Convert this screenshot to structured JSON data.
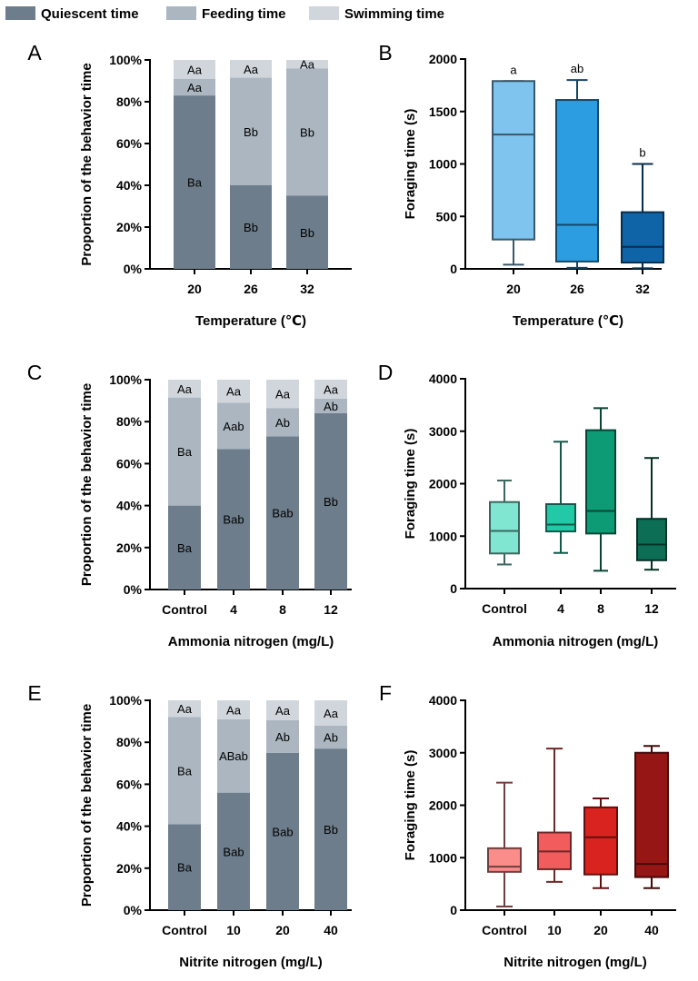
{
  "legend": {
    "items": [
      {
        "label": "Quiescent time",
        "color": "#6e7d8b"
      },
      {
        "label": "Feeding time",
        "color": "#abb6c1"
      },
      {
        "label": "Swimming time",
        "color": "#d0d6dc"
      }
    ]
  },
  "chart_data": [
    {
      "panel": "A",
      "type": "stacked-bar",
      "ylabel": "Proportion of the behavior time",
      "xlabel": "Temperature (℃)",
      "ylim": [
        0,
        100
      ],
      "yticks": [
        "0%",
        "20%",
        "40%",
        "60%",
        "80%",
        "100%"
      ],
      "categories": [
        "20",
        "26",
        "32"
      ],
      "series": [
        {
          "name": "Quiescent time",
          "values": [
            83,
            40,
            35
          ],
          "labels": [
            "Ba",
            "Bb",
            "Bb"
          ]
        },
        {
          "name": "Feeding time",
          "values": [
            8,
            51.5,
            61
          ],
          "labels": [
            "Aa",
            "Bb",
            "Bb"
          ]
        },
        {
          "name": "Swimming time",
          "values": [
            9,
            8.5,
            4
          ],
          "labels": [
            "Aa",
            "Aa",
            "Aa"
          ]
        }
      ]
    },
    {
      "panel": "B",
      "type": "box",
      "ylabel": "Foraging time (s)",
      "xlabel": "Temperature (℃)",
      "ylim": [
        0,
        2000
      ],
      "yticks": [
        "0",
        "500",
        "1000",
        "1500",
        "2000"
      ],
      "categories": [
        "20",
        "26",
        "32"
      ],
      "boxes": [
        {
          "min": 40,
          "q1": 280,
          "median": 1280,
          "q3": 1790,
          "max": 1790,
          "color": "#7ec4ee",
          "sig": "a"
        },
        {
          "min": 10,
          "q1": 70,
          "median": 420,
          "q3": 1610,
          "max": 1800,
          "color": "#2d9de2",
          "sig": "ab"
        },
        {
          "min": 5,
          "q1": 60,
          "median": 210,
          "q3": 540,
          "max": 1000,
          "color": "#0f64a8",
          "sig": "b"
        }
      ]
    },
    {
      "panel": "C",
      "type": "stacked-bar",
      "ylabel": "Proportion of the behavior time",
      "xlabel": "Ammonia nitrogen (mg/L)",
      "ylim": [
        0,
        100
      ],
      "yticks": [
        "0%",
        "20%",
        "40%",
        "60%",
        "80%",
        "100%"
      ],
      "categories": [
        "Control",
        "4",
        "8",
        "12"
      ],
      "series": [
        {
          "name": "Quiescent time",
          "values": [
            40,
            67,
            73,
            84
          ],
          "labels": [
            "Ba",
            "Bab",
            "Bab",
            "Bb"
          ]
        },
        {
          "name": "Feeding time",
          "values": [
            51.5,
            22,
            13.5,
            7
          ],
          "labels": [
            "Ba",
            "Aab",
            "Ab",
            "Ab"
          ]
        },
        {
          "name": "Swimming time",
          "values": [
            8.5,
            11,
            13.5,
            9
          ],
          "labels": [
            "Aa",
            "Aa",
            "Aa",
            "Aa"
          ]
        }
      ]
    },
    {
      "panel": "D",
      "type": "box",
      "ylabel": "Foraging time (s)",
      "xlabel": "Ammonia nitrogen (mg/L)",
      "ylim": [
        0,
        4000
      ],
      "yticks": [
        "0",
        "1000",
        "2000",
        "3000",
        "4000"
      ],
      "categories": [
        "Control",
        "4",
        "8",
        "12"
      ],
      "boxes": [
        {
          "min": 460,
          "q1": 670,
          "median": 1100,
          "q3": 1650,
          "max": 2060,
          "color": "#80e6d2",
          "sig": ""
        },
        {
          "min": 680,
          "q1": 1090,
          "median": 1220,
          "q3": 1610,
          "max": 2800,
          "color": "#23c9a6",
          "sig": ""
        },
        {
          "min": 340,
          "q1": 1050,
          "median": 1480,
          "q3": 3020,
          "max": 3440,
          "color": "#0c9b74",
          "sig": ""
        },
        {
          "min": 360,
          "q1": 540,
          "median": 840,
          "q3": 1330,
          "max": 2490,
          "color": "#0b6e55",
          "sig": ""
        }
      ]
    },
    {
      "panel": "E",
      "type": "stacked-bar",
      "ylabel": "Proportion of the behavior time",
      "xlabel": "Nitrite nitrogen (mg/L)",
      "ylim": [
        0,
        100
      ],
      "yticks": [
        "0%",
        "20%",
        "40%",
        "60%",
        "80%",
        "100%"
      ],
      "categories": [
        "Control",
        "10",
        "20",
        "40"
      ],
      "series": [
        {
          "name": "Quiescent time",
          "values": [
            41,
            56,
            75,
            77
          ],
          "labels": [
            "Ba",
            "Bab",
            "Bab",
            "Bb"
          ]
        },
        {
          "name": "Feeding time",
          "values": [
            51,
            35,
            15.5,
            11
          ],
          "labels": [
            "Ba",
            "ABab",
            "Ab",
            "Ab"
          ]
        },
        {
          "name": "Swimming time",
          "values": [
            8,
            9,
            9.5,
            12
          ],
          "labels": [
            "Aa",
            "Aa",
            "Aa",
            "Aa"
          ]
        }
      ]
    },
    {
      "panel": "F",
      "type": "box",
      "ylabel": "Foraging time (s)",
      "xlabel": "Nitrite nitrogen (mg/L)",
      "ylim": [
        0,
        4000
      ],
      "yticks": [
        "0",
        "1000",
        "2000",
        "3000",
        "4000"
      ],
      "categories": [
        "Control",
        "10",
        "20",
        "40"
      ],
      "boxes": [
        {
          "min": 70,
          "q1": 730,
          "median": 830,
          "q3": 1180,
          "max": 2430,
          "color": "#fa8c8a",
          "sig": ""
        },
        {
          "min": 540,
          "q1": 780,
          "median": 1120,
          "q3": 1480,
          "max": 3080,
          "color": "#f35c5c",
          "sig": ""
        },
        {
          "min": 420,
          "q1": 680,
          "median": 1390,
          "q3": 1960,
          "max": 2130,
          "color": "#d9231f",
          "sig": ""
        },
        {
          "min": 420,
          "q1": 630,
          "median": 880,
          "q3": 3000,
          "max": 3130,
          "color": "#961515",
          "sig": ""
        }
      ]
    }
  ]
}
